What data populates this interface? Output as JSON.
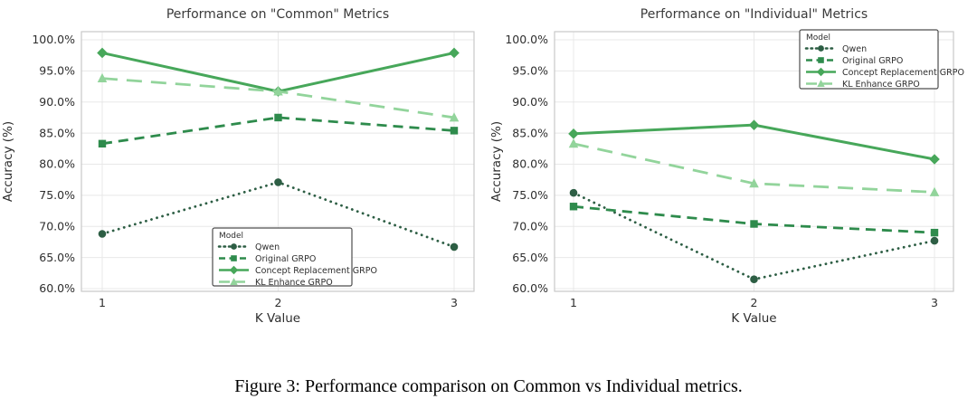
{
  "page": {
    "background": "#ffffff"
  },
  "figure_caption": "Figure 3: Performance comparison on Common vs Individual metrics.",
  "chart_data": [
    {
      "type": "line",
      "title": "Performance on \"Common\" Metrics",
      "xlabel": "K Value",
      "ylabel": "Accuracy (%)",
      "x": [
        1,
        2,
        3
      ],
      "xtick_labels": [
        "1",
        "2",
        "3"
      ],
      "ylim": [
        60,
        100
      ],
      "yticks": [
        100,
        95,
        90,
        85,
        80,
        75,
        70,
        65,
        60
      ],
      "ytick_labels": [
        "100.0%",
        "95.0%",
        "90.0%",
        "85.0%",
        "80.0%",
        "75.0%",
        "70.0%",
        "65.0%",
        "60.0%"
      ],
      "grid": true,
      "legend_title": "Model",
      "legend_position": "lower-center",
      "series": [
        {
          "name": "Qwen",
          "values": [
            68.8,
            77.1,
            66.7
          ],
          "color": "#2d5e44",
          "line_style": "dotted",
          "marker": "circle"
        },
        {
          "name": "Original GRPO",
          "values": [
            83.3,
            87.5,
            85.4
          ],
          "color": "#2e8b4c",
          "line_style": "dashed",
          "marker": "square"
        },
        {
          "name": "Concept Replacement GRPO",
          "values": [
            97.9,
            91.7,
            97.9
          ],
          "color": "#47a75a",
          "line_style": "solid",
          "marker": "diamond"
        },
        {
          "name": "KL Enhance GRPO",
          "values": [
            93.8,
            91.7,
            87.5
          ],
          "color": "#92d49b",
          "line_style": "long-dash",
          "marker": "triangle"
        }
      ]
    },
    {
      "type": "line",
      "title": "Performance on \"Individual\" Metrics",
      "xlabel": "K Value",
      "ylabel": "Accuracy (%)",
      "x": [
        1,
        2,
        3
      ],
      "xtick_labels": [
        "1",
        "2",
        "3"
      ],
      "ylim": [
        60,
        100
      ],
      "yticks": [
        100,
        95,
        90,
        85,
        80,
        75,
        70,
        65,
        60
      ],
      "ytick_labels": [
        "100.0%",
        "95.0%",
        "90.0%",
        "85.0%",
        "80.0%",
        "75.0%",
        "70.0%",
        "65.0%",
        "60.0%"
      ],
      "grid": true,
      "legend_title": "Model",
      "legend_position": "upper-right",
      "series": [
        {
          "name": "Qwen",
          "values": [
            75.4,
            61.5,
            67.7
          ],
          "color": "#2d5e44",
          "line_style": "dotted",
          "marker": "circle"
        },
        {
          "name": "Original GRPO",
          "values": [
            73.2,
            70.4,
            69.0
          ],
          "color": "#2e8b4c",
          "line_style": "dashed",
          "marker": "square"
        },
        {
          "name": "Concept Replacement GRPO",
          "values": [
            84.9,
            86.3,
            80.8
          ],
          "color": "#47a75a",
          "line_style": "solid",
          "marker": "diamond"
        },
        {
          "name": "KL Enhance GRPO",
          "values": [
            83.3,
            76.9,
            75.5
          ],
          "color": "#92d49b",
          "line_style": "long-dash",
          "marker": "triangle"
        }
      ]
    }
  ]
}
